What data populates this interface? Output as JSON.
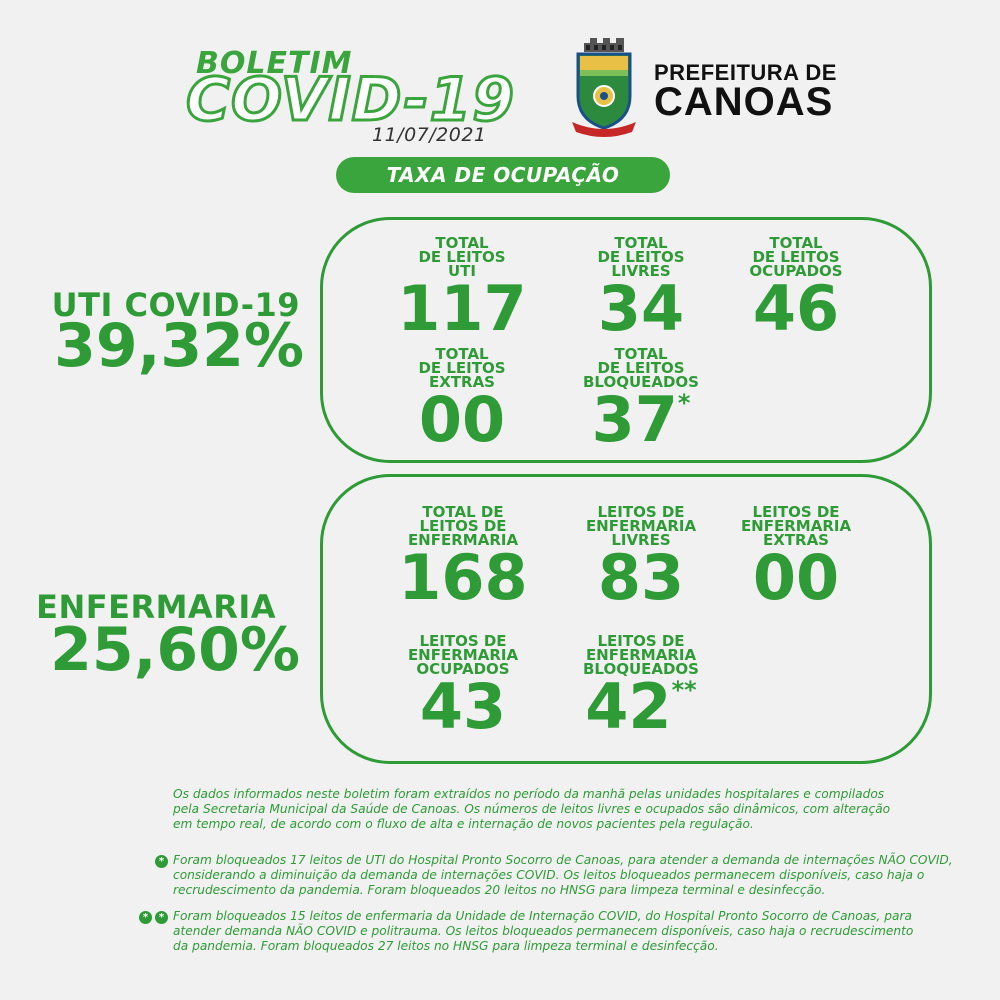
{
  "header": {
    "boletim": "BOLETIM",
    "covid": "COVID-19",
    "date": "11/07/2021",
    "prefeitura_line1": "PREFEITURA DE",
    "prefeitura_line2": "CANOAS",
    "crest_label": "CANOAS"
  },
  "pill": "TAXA DE OCUPAÇÃO",
  "uti": {
    "label": "UTI COVID-19",
    "pct": "39,32%",
    "stats": [
      {
        "label": "TOTAL\nDE LEITOS\nUTI",
        "value": "117"
      },
      {
        "label": "TOTAL\nDE LEITOS\nLIVRES",
        "value": "34"
      },
      {
        "label": "TOTAL\nDE LEITOS\nOCUPADOS",
        "value": "46"
      },
      {
        "label": "TOTAL\nDE LEITOS\nEXTRAS",
        "value": "00"
      },
      {
        "label": "TOTAL\nDE LEITOS\nBLOQUEADOS",
        "value": "37",
        "mark": "*"
      }
    ]
  },
  "enfermaria": {
    "label": "ENFERMARIA",
    "pct": "25,60%",
    "stats": [
      {
        "label": "TOTAL DE\nLEITOS DE\nENFERMARIA",
        "value": "168"
      },
      {
        "label": "LEITOS DE\nENFERMARIA\nLIVRES",
        "value": "83"
      },
      {
        "label": "LEITOS DE\nENFERMARIA\nEXTRAS",
        "value": "00"
      },
      {
        "label": "LEITOS DE\nENFERMARIA\nOCUPADOS",
        "value": "43"
      },
      {
        "label": "LEITOS DE\nENFERMARIA\nBLOQUEADOS",
        "value": "42",
        "mark": "**"
      }
    ]
  },
  "notes": {
    "main": "Os dados informados neste boletim foram extraídos no período da manhã pelas unidades hospitalares e compilados\npela Secretaria Municipal da Saúde de Canoas. Os números de leitos livres e ocupados são dinâmicos, com alteração\nem tempo real, de acordo com o fluxo de alta e internação de novos pacientes pela regulação.",
    "note1": "Foram bloqueados 17 leitos de UTI do Hospital Pronto Socorro de Canoas, para atender a demanda de internações NÃO COVID,\nconsiderando a diminuição da demanda de internações COVID. Os leitos bloqueados permanecem disponíveis, caso haja o\nrecrudescimento da pandemia. Foram bloqueados 20 leitos no HNSG para limpeza terminal e desinfecção.",
    "note2": "Foram bloqueados 15 leitos de enfermaria da Unidade de Internação COVID, do Hospital Pronto Socorro de Canoas, para\natender demanda NÃO COVID e politrauma. Os leitos bloqueados permanecem disponíveis, caso haja o recrudescimento\nda pandemia. Foram bloqueados 27 leitos no HNSG para limpeza terminal e desinfecção.",
    "bullet_symbol": "*"
  },
  "colors": {
    "green": "#2e9b36",
    "background": "#f1f1f1"
  }
}
